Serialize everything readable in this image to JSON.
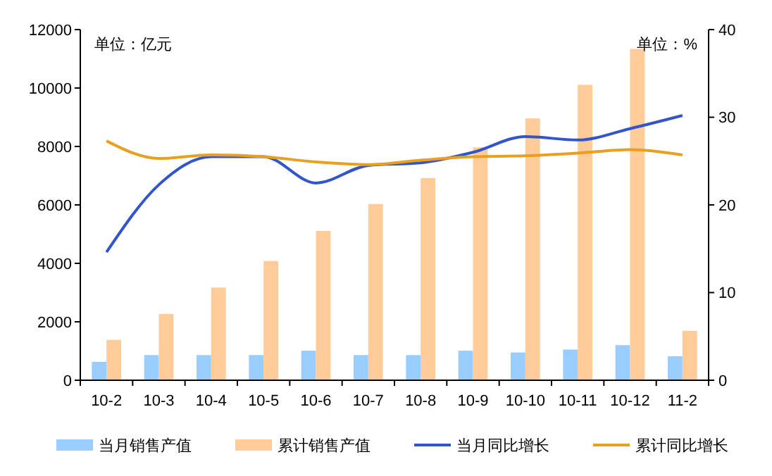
{
  "chart_data": {
    "type": "bar",
    "categories": [
      "10-2",
      "10-3",
      "10-4",
      "10-5",
      "10-6",
      "10-7",
      "10-8",
      "10-9",
      "10-10",
      "10-11",
      "10-12",
      "11-2"
    ],
    "series": [
      {
        "name": "当月销售产值",
        "color": "#99ccff",
        "values": [
          630,
          860,
          860,
          860,
          1010,
          860,
          860,
          1010,
          950,
          1050,
          1200,
          820
        ]
      },
      {
        "name": "累计销售产值",
        "color": "#ffcc99",
        "values": [
          1380,
          2270,
          3170,
          4080,
          5110,
          6030,
          6920,
          7970,
          8960,
          10110,
          11340,
          1690
        ]
      },
      {
        "name": "当月同比增长",
        "type": "line",
        "axis": "y2",
        "color": "#3355cc",
        "values": [
          14.6,
          22.3,
          25.5,
          25.5,
          22.5,
          24.5,
          24.8,
          26.0,
          27.8,
          27.4,
          28.7,
          30.2
        ]
      },
      {
        "name": "累计同比增长",
        "type": "line",
        "axis": "y2",
        "color": "#e8a020",
        "values": [
          27.3,
          25.3,
          25.7,
          25.5,
          24.9,
          24.6,
          25.1,
          25.5,
          25.6,
          25.9,
          26.3,
          25.7
        ]
      }
    ],
    "ylim": [
      0,
      12000
    ],
    "yticks": [
      0,
      2000,
      4000,
      6000,
      8000,
      10000,
      12000
    ],
    "y2lim": [
      0,
      40
    ],
    "y2ticks": [
      0,
      10,
      20,
      30,
      40
    ],
    "annotations": [
      "单位：亿元",
      "单位：%"
    ],
    "grid": false,
    "legend": "bottom",
    "marker": "none",
    "line_style": "solid"
  }
}
